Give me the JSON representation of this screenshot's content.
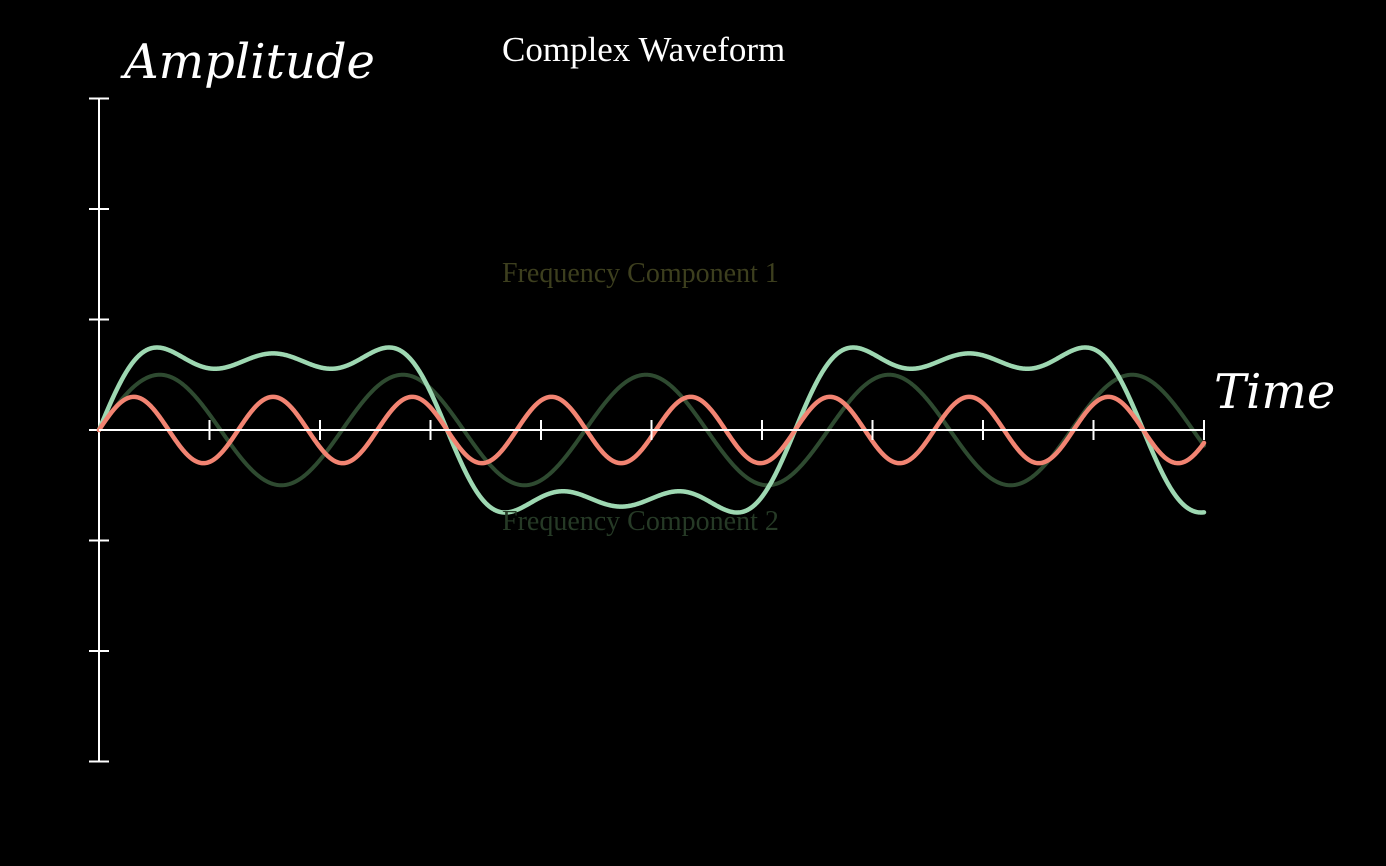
{
  "chart_data": {
    "type": "line",
    "title": "Complex Waveform",
    "xlabel": "Time",
    "ylabel": "Amplitude",
    "xlim": [
      0,
      10
    ],
    "ylim": [
      -3,
      3
    ],
    "x_ticks": [
      0,
      1,
      2,
      3,
      4,
      5,
      6,
      7,
      8,
      9,
      10
    ],
    "y_ticks": [
      -3,
      -2,
      -1,
      0,
      1,
      2,
      3
    ],
    "grid": false,
    "legend": "none",
    "annotations": [
      {
        "text": "Frequency Component 1",
        "color": "#3d3f1e",
        "near_series": "component1"
      },
      {
        "text": "Frequency Component 2",
        "color": "#263a26",
        "near_series": "component2"
      }
    ],
    "series": [
      {
        "id": "component1",
        "color": "#2e4a30",
        "amplitude": 0.5,
        "frequency": 0.4545,
        "description_formula": "y = 0.5 * sin(2*pi*x/2.2)"
      },
      {
        "id": "component2",
        "color": "#f28472",
        "amplitude": 0.3,
        "frequency": 0.7937,
        "description_formula": "y = 0.3 * sin(2*pi*x/1.26)"
      },
      {
        "id": "complex",
        "color": "#9ed8b2",
        "amplitude": 1.0,
        "period": 6.3,
        "harmonics": [
          1,
          3,
          5
        ],
        "description_formula": "square wave approximation with odd harmonics"
      }
    ]
  }
}
